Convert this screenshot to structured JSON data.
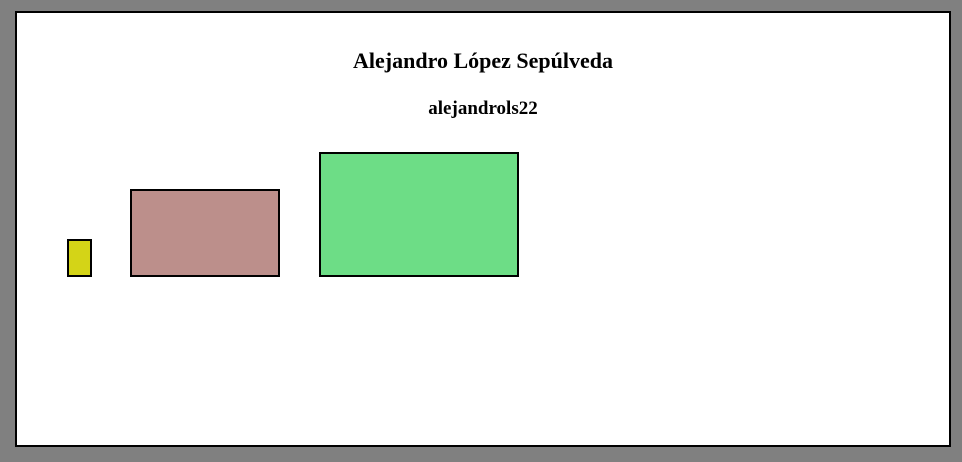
{
  "page": {
    "title": "Alejandro López Sepúlveda",
    "subtitle": "alejandrols22"
  },
  "rectangles": [
    {
      "name": "yellow-rectangle",
      "color": "#d4d417"
    },
    {
      "name": "mauve-rectangle",
      "color": "#bc8f8b"
    },
    {
      "name": "green-rectangle",
      "color": "#6ddd86"
    }
  ]
}
